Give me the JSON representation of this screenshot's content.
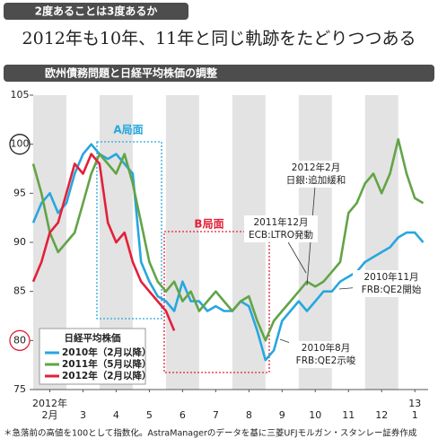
{
  "chart_data": {
    "type": "line",
    "tag": "2度あることは3度あるか",
    "title": "2012年も10年、11年と同じ軌跡をたどりつつある",
    "subtitle": "欧州債務問題と日経平均株価の調整",
    "x": [
      0,
      0.25,
      0.5,
      0.75,
      1,
      1.25,
      1.5,
      1.75,
      2,
      2.25,
      2.5,
      2.75,
      3,
      3.25,
      3.5,
      3.75,
      4,
      4.25,
      4.5,
      4.75,
      5,
      5.25,
      5.5,
      5.75,
      6,
      6.25,
      6.5,
      6.75,
      7,
      7.25,
      7.5,
      7.75,
      8,
      8.25,
      8.5,
      8.75,
      9,
      9.25,
      9.5,
      9.75,
      10,
      10.25,
      10.5,
      10.75,
      11,
      11.25,
      11.5,
      11.75
    ],
    "series": [
      {
        "name": "2010年（2月以降）",
        "color": "#27a7df",
        "values": [
          92,
          94,
          95,
          93,
          94,
          97,
          99,
          100,
          99,
          98.5,
          99,
          98,
          97,
          88,
          86,
          84.5,
          84,
          83,
          86,
          84,
          84,
          83,
          83.5,
          83,
          83,
          84,
          83.5,
          81,
          78,
          79,
          82,
          83,
          84,
          83,
          84,
          85,
          85,
          86,
          86.5,
          87,
          88,
          88.5,
          89,
          89.5,
          90.5,
          91,
          91,
          90
        ]
      },
      {
        "name": "2011年（5月以降）",
        "color": "#62a446",
        "values": [
          98,
          95,
          91,
          89,
          90,
          91,
          94,
          97,
          99,
          98,
          97,
          99,
          96,
          92,
          88,
          86,
          85,
          86,
          84,
          85,
          83,
          84,
          85,
          84,
          83,
          84,
          84.5,
          82,
          80,
          82,
          83,
          84,
          85,
          86,
          85.5,
          86,
          87,
          88,
          93,
          94,
          96,
          97,
          95,
          97,
          100.5,
          97,
          94.5,
          94
        ]
      },
      {
        "name": "2012年（2月以降）",
        "color": "#e3203a",
        "values": [
          86,
          88,
          91,
          92,
          95,
          98,
          97,
          99,
          98,
          92,
          90,
          91,
          88,
          86,
          85,
          84,
          83,
          81,
          null,
          null,
          null,
          null,
          null,
          null,
          null,
          null,
          null,
          null,
          null,
          null,
          null,
          null,
          null,
          null,
          null,
          null,
          null,
          null,
          null,
          null,
          null,
          null,
          null,
          null,
          null,
          null,
          null,
          null
        ]
      }
    ],
    "xlim": [
      0,
      11.9
    ],
    "xticks": [
      {
        "value": 0.5,
        "label": "2月"
      },
      {
        "value": 1.5,
        "label": "3"
      },
      {
        "value": 2.5,
        "label": "4"
      },
      {
        "value": 3.5,
        "label": "5"
      },
      {
        "value": 4.5,
        "label": "6"
      },
      {
        "value": 5.5,
        "label": "7"
      },
      {
        "value": 6.5,
        "label": "8"
      },
      {
        "value": 7.5,
        "label": "9"
      },
      {
        "value": 8.5,
        "label": "10"
      },
      {
        "value": 9.5,
        "label": "11"
      },
      {
        "value": 10.5,
        "label": "12"
      },
      {
        "value": 11.5,
        "label": "1"
      }
    ],
    "year_labels": [
      {
        "value": 0.5,
        "label": "2012年"
      },
      {
        "value": 11.5,
        "label": "13"
      }
    ],
    "ylim": [
      75,
      105
    ],
    "yticks": [
      75,
      80,
      85,
      90,
      95,
      100,
      105
    ],
    "regions": [
      {
        "label": "A局面",
        "color": "#27a7df"
      },
      {
        "label": "B局面",
        "color": "#e3203a"
      }
    ],
    "annotations": [
      {
        "lines": [
          "2012年2月",
          "日銀:追加緩和"
        ]
      },
      {
        "lines": [
          "2011年12月",
          "ECB:LTRO発動"
        ]
      },
      {
        "lines": [
          "2010年11月",
          "FRB:QE2開始"
        ]
      },
      {
        "lines": [
          "2010年8月",
          "FRB:QE2示唆"
        ]
      }
    ],
    "legend_title": "日経平均株価",
    "note": "＊急落前の高値を100として指数化。AstraManagerのデータを基に三菱UFJモルガン・スタンレー証券作成"
  }
}
